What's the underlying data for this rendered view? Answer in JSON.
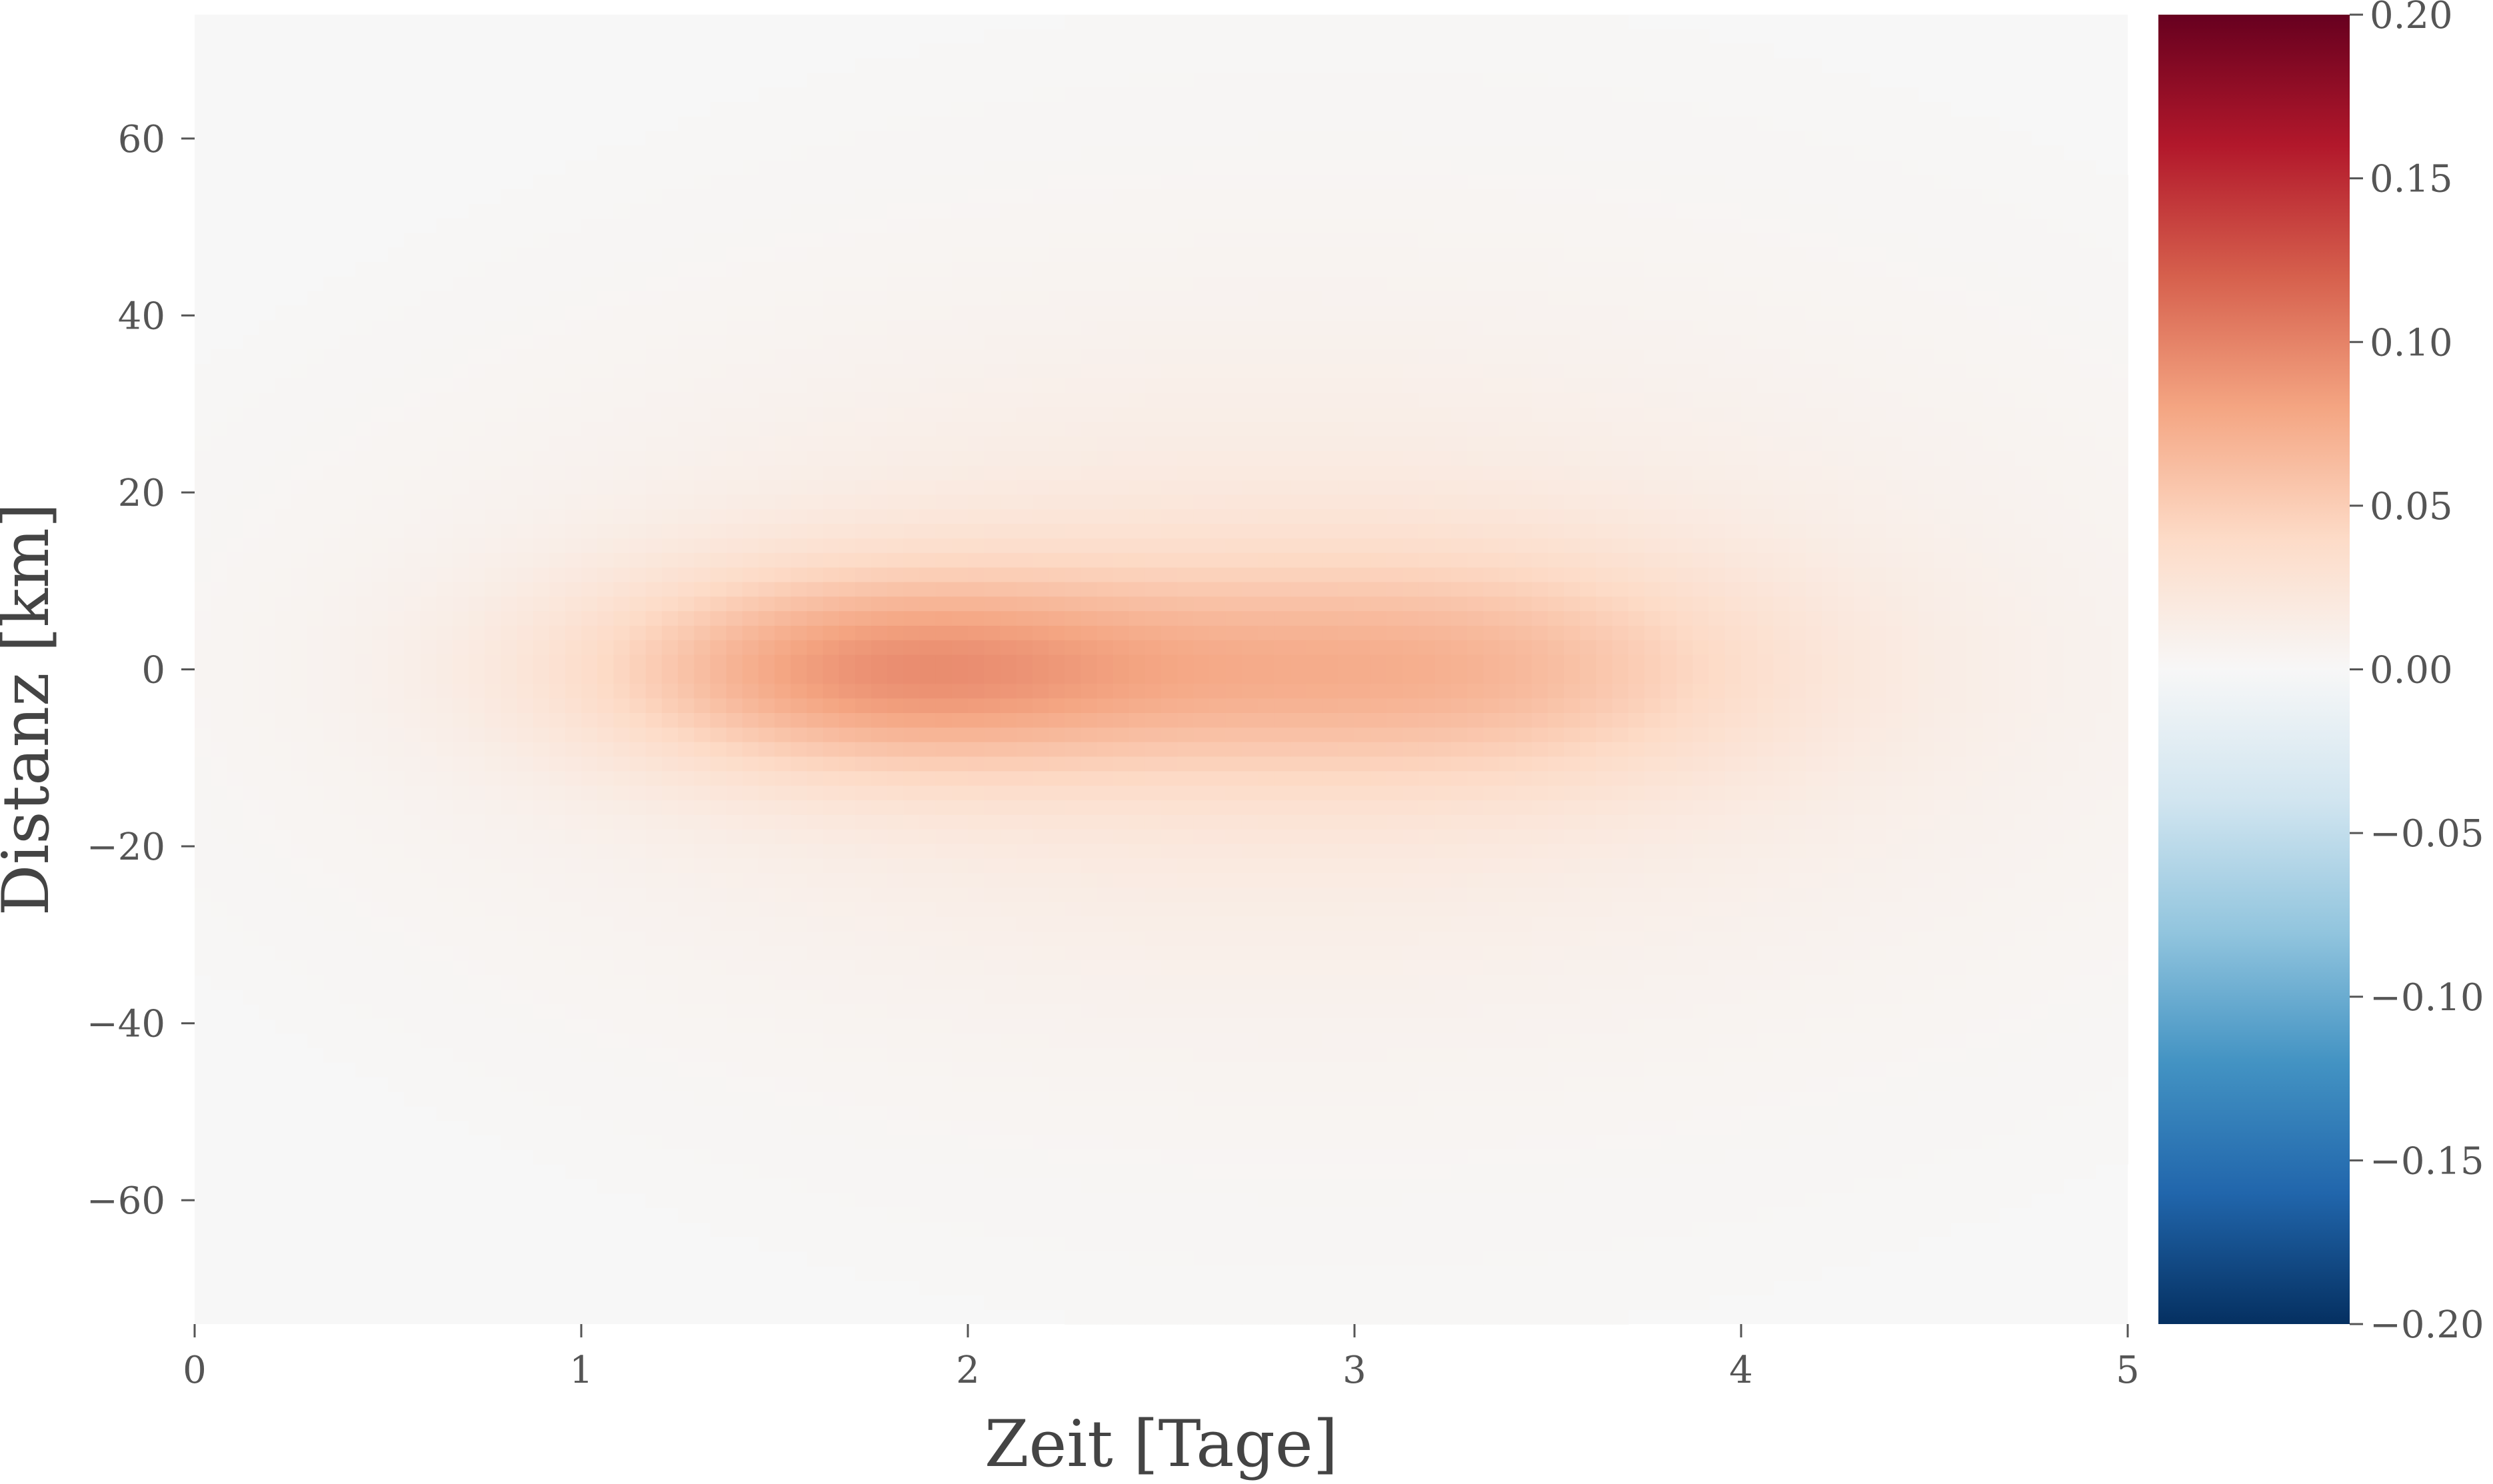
{
  "chart_data": {
    "type": "heatmap",
    "title": "",
    "xlabel": "Zeit [Tage]",
    "ylabel": "Distanz [km]",
    "xlim": [
      0,
      5
    ],
    "ylim": [
      -74,
      74
    ],
    "x_ticks": [
      0,
      1,
      2,
      3,
      4,
      5
    ],
    "x_tick_labels": [
      "0",
      "1",
      "2",
      "3",
      "4",
      "5"
    ],
    "y_ticks": [
      -60,
      -40,
      -20,
      0,
      20,
      40,
      60
    ],
    "y_tick_labels": [
      "−60",
      "−40",
      "−20",
      "0",
      "20",
      "40",
      "60"
    ],
    "grid": false,
    "colormap": "RdBu_r",
    "colorbar": {
      "vmin": -0.2,
      "vmax": 0.2,
      "ticks": [
        -0.2,
        -0.15,
        -0.1,
        -0.05,
        0.0,
        0.05,
        0.1,
        0.15,
        0.2
      ],
      "tick_labels": [
        "−0.20",
        "−0.15",
        "−0.10",
        "−0.05",
        "0.00",
        "0.05",
        "0.10",
        "0.15",
        "0.20"
      ],
      "colors": [
        "#053061",
        "#2166ac",
        "#4393c3",
        "#92c5de",
        "#d1e5f0",
        "#f7f7f7",
        "#fddbc7",
        "#f4a582",
        "#d6604d",
        "#b2182b",
        "#67001f"
      ]
    },
    "field_components": [
      {
        "t_center": 1.8,
        "x_center": 0,
        "amplitude": 0.07,
        "t_width": 0.55,
        "x_width": 8
      },
      {
        "t_center": 3.2,
        "x_center": 0,
        "amplitude": 0.045,
        "t_width": 0.6,
        "x_width": 9
      },
      {
        "t_center": 2.7,
        "x_center": 0,
        "amplitude": 0.02,
        "t_width": 1.3,
        "x_width": 22
      },
      {
        "t_center": 3.0,
        "x_center": 0,
        "amplitude": 0.006,
        "t_width": 1.6,
        "x_width": 45
      }
    ]
  }
}
